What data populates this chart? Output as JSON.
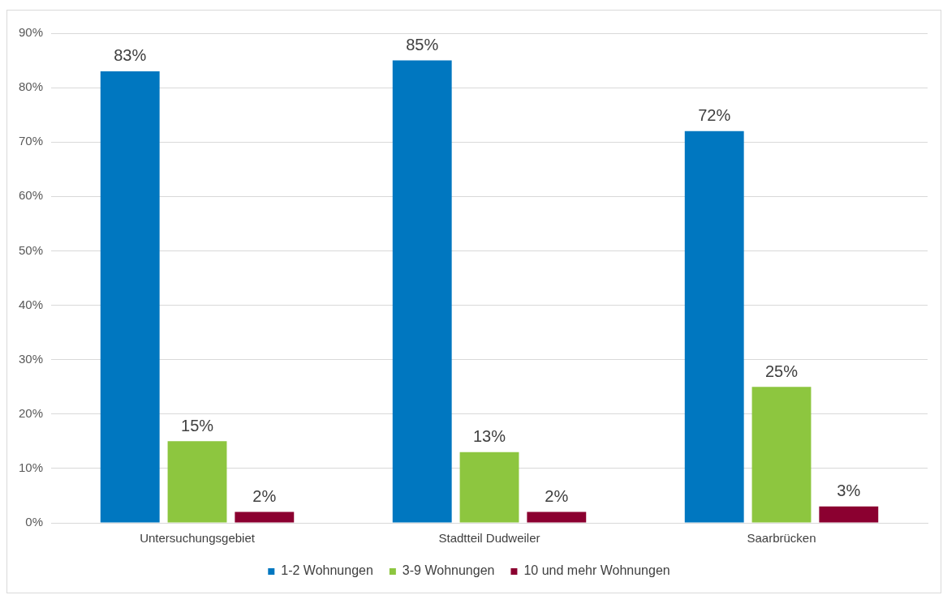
{
  "chart_data": {
    "type": "bar",
    "categories": [
      "Untersuchungsgebiet",
      "Stadtteil Dudweiler",
      "Saarbrücken"
    ],
    "series": [
      {
        "name": "1-2 Wohnungen",
        "color": "#0077c0",
        "values": [
          83,
          85,
          72
        ],
        "value_labels": [
          "83%",
          "85%",
          "72%"
        ]
      },
      {
        "name": "3-9 Wohnungen",
        "color": "#8dc63f",
        "values": [
          15,
          13,
          25
        ],
        "value_labels": [
          "15%",
          "13%",
          "25%"
        ]
      },
      {
        "name": "10 und mehr Wohnungen",
        "color": "#8b0030",
        "values": [
          2,
          2,
          3
        ],
        "value_labels": [
          "2%",
          "2%",
          "3%"
        ]
      }
    ],
    "ylim": [
      0,
      90
    ],
    "yticks": [
      {
        "value": 0,
        "label": "0%"
      },
      {
        "value": 10,
        "label": "10%"
      },
      {
        "value": 20,
        "label": "20%"
      },
      {
        "value": 30,
        "label": "30%"
      },
      {
        "value": 40,
        "label": "40%"
      },
      {
        "value": 50,
        "label": "50%"
      },
      {
        "value": 60,
        "label": "60%"
      },
      {
        "value": 70,
        "label": "70%"
      },
      {
        "value": 80,
        "label": "80%"
      },
      {
        "value": 90,
        "label": "90%"
      }
    ],
    "grid": "y",
    "legend": "bottom"
  }
}
